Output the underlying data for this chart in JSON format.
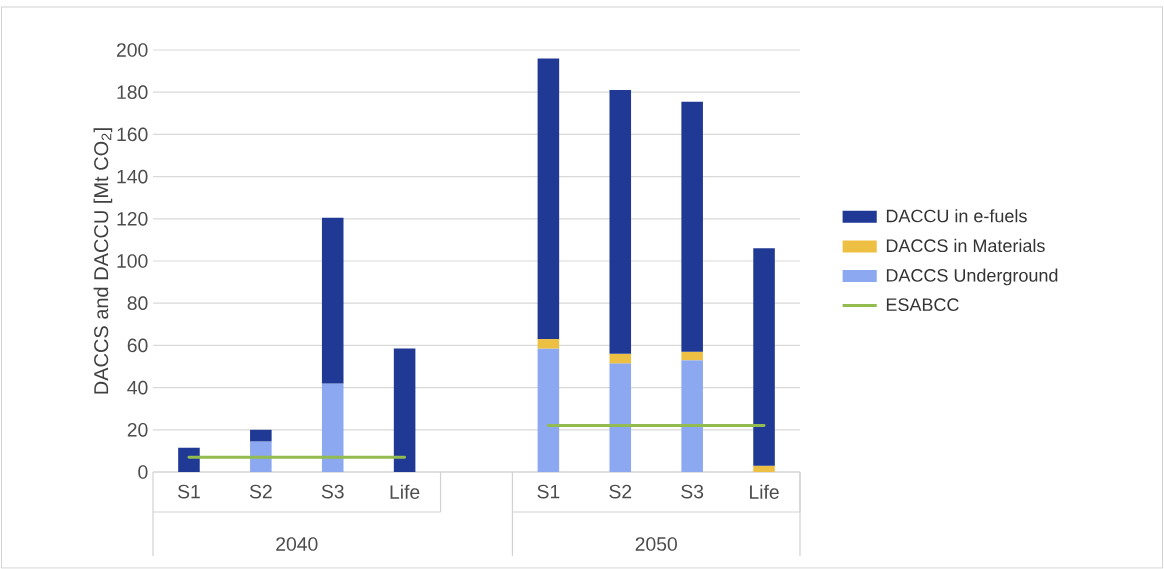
{
  "chart_data": {
    "type": "bar",
    "stacked": true,
    "ylabel": "DACCS and DACCU [Mt CO$_{2}$]",
    "categories": [
      "S1",
      "S2",
      "S3",
      "Life",
      null,
      "S1",
      "S2",
      "S3",
      "Life"
    ],
    "annotations": [
      "2040",
      "2050"
    ],
    "series": [
      {
        "name": "DACCS Underground",
        "color": "#8ba8f0",
        "values": [
          null,
          14.5,
          42,
          null,
          null,
          58.5,
          51.5,
          53,
          null
        ]
      },
      {
        "name": "DACCS in Materials",
        "color": "#edc043",
        "values": [
          null,
          null,
          null,
          null,
          null,
          4.5,
          4.5,
          4,
          3
        ]
      },
      {
        "name": "DACCU in e-fuels",
        "color": "#1f3994",
        "values": [
          11.5,
          5.5,
          78.5,
          58.5,
          null,
          133,
          125,
          118.5,
          103
        ]
      },
      {
        "name": "ESABCC",
        "type": "line",
        "color": "#92bb50",
        "values": [
          7,
          7,
          7,
          7,
          null,
          22,
          22,
          22,
          22
        ]
      }
    ],
    "ylim": [
      0,
      200
    ],
    "yticks": [
      0,
      20,
      40,
      60,
      80,
      100,
      120,
      140,
      160,
      180,
      200
    ],
    "grid": "y",
    "legend": "right",
    "marker": "none",
    "line_style": "solid"
  }
}
